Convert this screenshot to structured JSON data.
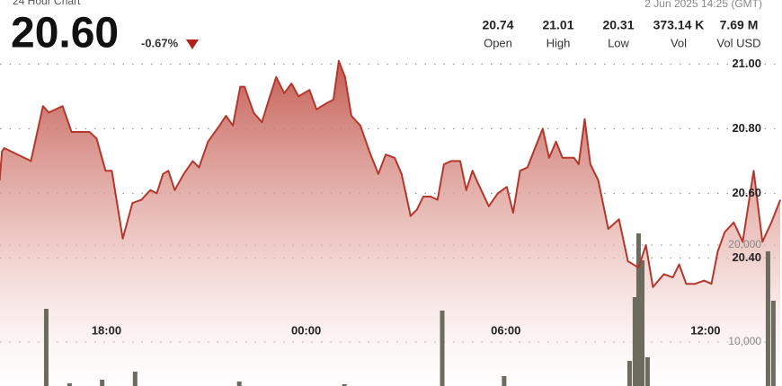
{
  "header": {
    "title": "24 Hour Chart",
    "price": "20.60",
    "change": "-0.67%",
    "timestamp": "2 Jun 2025 14:25 (GMT)",
    "stats": [
      {
        "value": "20.74",
        "label": "Open"
      },
      {
        "value": "21.01",
        "label": "High"
      },
      {
        "value": "20.31",
        "label": "Low"
      },
      {
        "value": "373.14 K",
        "label": "Vol"
      },
      {
        "value": "7.69 M",
        "label": "Vol USD"
      }
    ]
  },
  "chart_data": [
    {
      "type": "area",
      "color": "#b5372b",
      "x": [
        14.79,
        14.86,
        14.93,
        15.73,
        16.09,
        16.27,
        16.68,
        16.95,
        17.22,
        17.49,
        17.7,
        17.97,
        18.16,
        18.49,
        18.78,
        19.05,
        19.32,
        19.51,
        19.7,
        19.86,
        20.05,
        20.32,
        20.59,
        20.78,
        21.05,
        21.4,
        21.59,
        21.8,
        22.02,
        22.15,
        22.42,
        22.67,
        22.88,
        23.1,
        23.34,
        23.56,
        23.77,
        24.1,
        24.31,
        24.63,
        24.82,
        24.98,
        25.17,
        25.36,
        25.63,
        25.9,
        26.17,
        26.39,
        26.66,
        26.87,
        27.14,
        27.33,
        27.52,
        27.74,
        27.95,
        28.14,
        28.36,
        28.63,
        28.81,
        29.0,
        29.17,
        29.49,
        29.76,
        30.03,
        30.22,
        30.43,
        30.65,
        30.84,
        31.11,
        31.3,
        31.51,
        31.7,
        32.05,
        32.19,
        32.37,
        32.54,
        32.78,
        33.08,
        33.4,
        33.67,
        33.99,
        34.21,
        34.42,
        34.75,
        35.02,
        35.21,
        35.42,
        35.69,
        35.96,
        36.18,
        36.37,
        36.58,
        36.85,
        37.12,
        37.45,
        37.71,
        37.98,
        38.25
      ],
      "values": [
        20.64,
        20.73,
        20.74,
        20.7,
        20.87,
        20.85,
        20.87,
        20.79,
        20.79,
        20.79,
        20.77,
        20.67,
        20.67,
        20.46,
        20.57,
        20.58,
        20.61,
        20.6,
        20.66,
        20.67,
        20.61,
        20.66,
        20.7,
        20.68,
        20.76,
        20.81,
        20.84,
        20.81,
        20.93,
        20.93,
        20.85,
        20.82,
        20.89,
        20.96,
        20.91,
        20.94,
        20.9,
        20.92,
        20.86,
        20.88,
        20.89,
        21.01,
        20.96,
        20.84,
        20.81,
        20.73,
        20.66,
        20.72,
        20.71,
        20.66,
        20.53,
        20.55,
        20.59,
        20.59,
        20.58,
        20.69,
        20.7,
        20.7,
        20.61,
        20.67,
        20.63,
        20.56,
        20.6,
        20.62,
        20.54,
        20.67,
        20.68,
        20.73,
        20.8,
        20.71,
        20.76,
        20.71,
        20.71,
        20.69,
        20.83,
        20.69,
        20.64,
        20.49,
        20.52,
        20.39,
        20.37,
        20.44,
        20.31,
        20.35,
        20.34,
        20.38,
        20.32,
        20.32,
        20.33,
        20.32,
        20.42,
        20.48,
        20.51,
        20.45,
        20.67,
        20.45,
        20.51,
        20.58
      ],
      "xlim": [
        14.8,
        38.3
      ],
      "xticks": [
        {
          "value": 18,
          "label": "18:00"
        },
        {
          "value": 24,
          "label": "00:00"
        },
        {
          "value": 30,
          "label": "06:00"
        },
        {
          "value": 36,
          "label": "12:00"
        }
      ],
      "ylim": [
        19.99,
        21.04
      ],
      "yticks": [
        {
          "value": 20.4,
          "label": "20.40"
        },
        {
          "value": 20.6,
          "label": "20.60"
        },
        {
          "value": 20.8,
          "label": "20.80"
        },
        {
          "value": 21,
          "label": "21.00"
        }
      ],
      "grid": true
    },
    {
      "type": "bar",
      "color": "#6d6b5f",
      "x": [
        16.19,
        16.89,
        17.87,
        18.86,
        21.99,
        25.15,
        28.09,
        29.95,
        33.72,
        33.88,
        33.99,
        34.1,
        34.26,
        37.88,
        38.04
      ],
      "values": [
        13426,
        5741,
        6111,
        6944,
        5926,
        5648,
        13241,
        6481,
        8056,
        14630,
        21204,
        18426,
        8426,
        19352,
        14259
      ],
      "xlim": [
        14.8,
        38.3
      ],
      "ylim": [
        5000,
        40000
      ],
      "yticks": [
        {
          "value": 10000,
          "label": "10,000"
        },
        {
          "value": 20000,
          "label": "20,000"
        }
      ],
      "grid": true
    }
  ]
}
